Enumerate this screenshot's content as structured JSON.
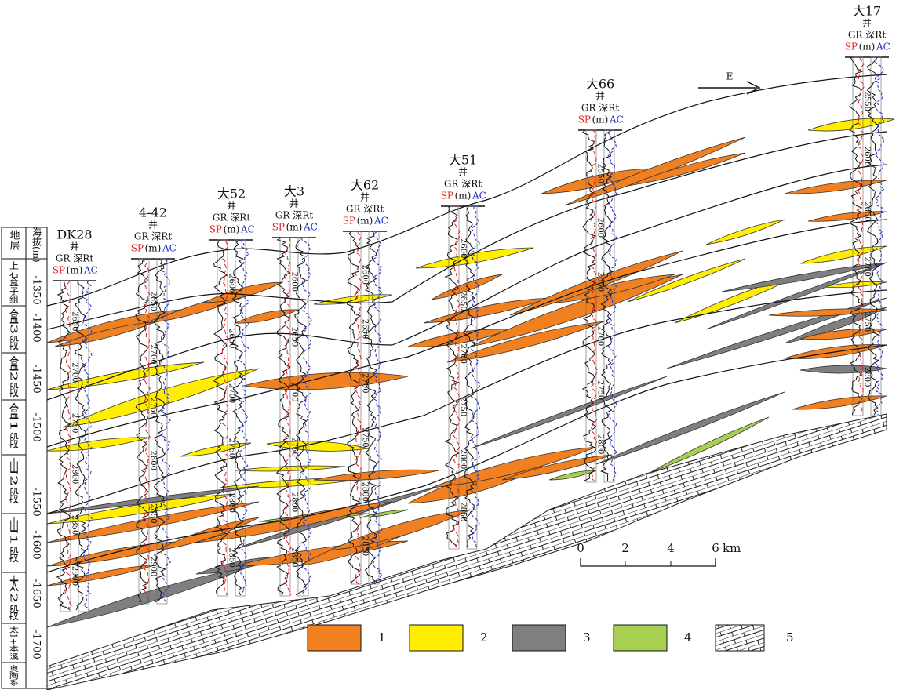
{
  "strata_column": {
    "header": "地层",
    "elevation_header": "海拔(m)",
    "units": [
      "上石盒子组",
      "盒3段",
      "盒2段",
      "盒1段",
      "山2段",
      "山1段",
      "太2段",
      "太1+本溪",
      "奥陶系"
    ],
    "elevations": [
      "-1350",
      "-1400",
      "-1450",
      "-1500",
      "-1550",
      "-1600",
      "-1650",
      "-1700"
    ]
  },
  "wells": [
    {
      "name": "DK28",
      "suffix": "井",
      "log_top": "GR 深Rt",
      "sp": "SP",
      "unit": "(m)",
      "ac": "AC",
      "depths": [
        "2650",
        "2700",
        "2750",
        "2800",
        "2850",
        "2900"
      ]
    },
    {
      "name": "4-42",
      "suffix": "井",
      "log_top": "GR 深Rt",
      "sp": "SP",
      "unit": "(m)",
      "ac": "AC",
      "depths": [
        "2650",
        "2700",
        "2750",
        "2800",
        "2850",
        "2900"
      ]
    },
    {
      "name": "大52",
      "suffix": "井",
      "log_top": "GR 深Rt",
      "sp": "SP",
      "unit": "(m)",
      "ac": "AC",
      "depths": [
        "2600",
        "2650",
        "2700",
        "2750",
        "2800",
        "2850"
      ]
    },
    {
      "name": "大3",
      "suffix": "井",
      "log_top": "GR 深Rt",
      "sp": "SP",
      "unit": "(m)",
      "ac": "AC",
      "depths": [
        "2600",
        "2650",
        "2700",
        "2750",
        "2800",
        "2850"
      ]
    },
    {
      "name": "大62",
      "suffix": "井",
      "log_top": "GR 深Rt",
      "sp": "SP",
      "unit": "(m)",
      "ac": "AC",
      "depths": [
        "2600",
        "2650",
        "2700",
        "2750",
        "2800",
        "2850"
      ]
    },
    {
      "name": "大51",
      "suffix": "井",
      "log_top": "GR 深Rt",
      "sp": "SP",
      "unit": "(m)",
      "ac": "AC",
      "depths": [
        "2600",
        "2650",
        "2700",
        "2750",
        "2800",
        "2850"
      ]
    },
    {
      "name": "大66",
      "suffix": "井",
      "log_top": "GR 深Rt",
      "sp": "SP",
      "unit": "(m)",
      "ac": "AC",
      "depths": [
        "2550",
        "2600",
        "2650",
        "2700",
        "2750",
        "2800"
      ]
    },
    {
      "name": "大17",
      "suffix": "井",
      "log_top": "GR 深Rt",
      "sp": "SP",
      "unit": "(m)",
      "ac": "AC",
      "depths": [
        "2550",
        "2600",
        "2650",
        "2700",
        "2750",
        "2800"
      ]
    }
  ],
  "direction": "E",
  "scale_bar": {
    "ticks": [
      "0",
      "2",
      "4",
      "6"
    ],
    "unit": "km"
  },
  "legend": [
    "1",
    "2",
    "3",
    "4",
    "5"
  ]
}
